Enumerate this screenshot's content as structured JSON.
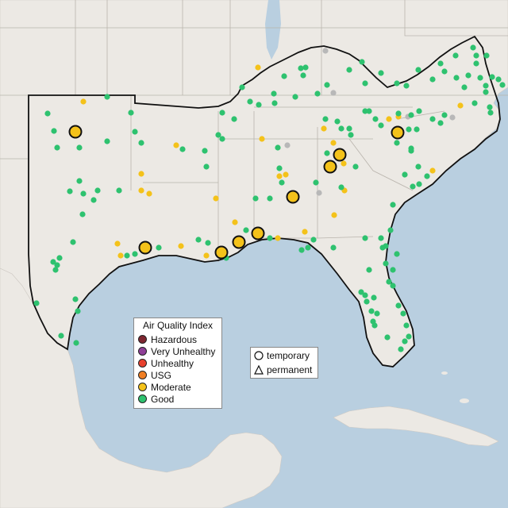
{
  "legend": {
    "title": "Air Quality Index",
    "items": [
      {
        "label": "Hazardous",
        "color": "#7e2630"
      },
      {
        "label": "Very Unhealthy",
        "color": "#8f3f97"
      },
      {
        "label": "Unhealthy",
        "color": "#e8412e"
      },
      {
        "label": "USG",
        "color": "#f07e23"
      },
      {
        "label": "Moderate",
        "color": "#f4c21a"
      },
      {
        "label": "Good",
        "color": "#2ec26f"
      }
    ]
  },
  "monitor_legend": {
    "temporary": "temporary",
    "permanent": "permanent"
  },
  "colors": {
    "water": "#b9cfe0",
    "land": "#ece9e4",
    "good": "#2ec26f",
    "moderate": "#f4c21a",
    "no_data": "#b8b8b8"
  },
  "map_markers": {
    "small_monitor_count": "dense set of small Good (green) and Moderate (yellow) site dots",
    "large_moderate_sites": 9
  }
}
